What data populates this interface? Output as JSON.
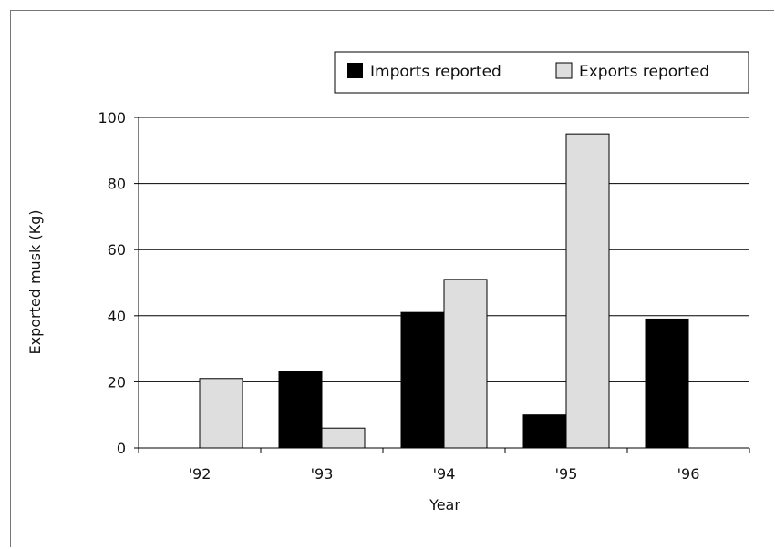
{
  "chart_data": {
    "type": "bar",
    "categories": [
      "'92",
      "'93",
      "'94",
      "'95",
      "'96"
    ],
    "series": [
      {
        "name": "Imports reported",
        "values": [
          0,
          23,
          41,
          10,
          39
        ],
        "color": "#000000"
      },
      {
        "name": "Exports reported",
        "values": [
          21,
          6,
          51,
          95,
          0
        ],
        "color": "#dedede"
      }
    ],
    "xlabel": "Year",
    "ylabel": "Exported musk (Kg)",
    "ylim": [
      0,
      100
    ],
    "yticks": [
      0,
      20,
      40,
      60,
      80,
      100
    ],
    "grid": true,
    "legend": "top-right"
  }
}
